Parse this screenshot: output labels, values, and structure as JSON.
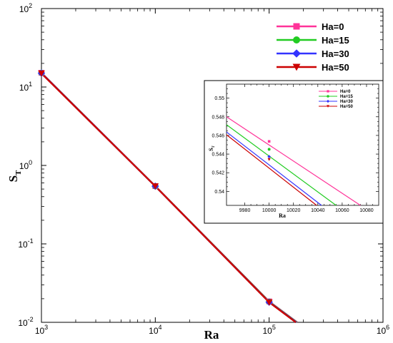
{
  "chart_data": [
    {
      "type": "line",
      "title": "",
      "xlabel": "Ra",
      "ylabel_main": "S",
      "ylabel_sub": "T",
      "xscale": "log",
      "yscale": "log",
      "xlim": [
        1000,
        1000000
      ],
      "ylim": [
        0.01,
        100
      ],
      "x_ticks": [
        {
          "mantissa": "10",
          "exp": "3"
        },
        {
          "mantissa": "10",
          "exp": "4"
        },
        {
          "mantissa": "10",
          "exp": "5"
        },
        {
          "mantissa": "10",
          "exp": "6"
        }
      ],
      "y_ticks": [
        {
          "mantissa": "10",
          "exp": "-2"
        },
        {
          "mantissa": "10",
          "exp": "-1"
        },
        {
          "mantissa": "10",
          "exp": "0"
        },
        {
          "mantissa": "10",
          "exp": "1"
        },
        {
          "mantissa": "10",
          "exp": "2"
        }
      ],
      "legend_position": "top-right",
      "series": [
        {
          "name": "Ha=0",
          "color": "#ff3399",
          "marker": "square",
          "x": [
            1000,
            10000,
            100000,
            180000
          ],
          "y": [
            15.2,
            0.545,
            0.0185,
            0.0098
          ]
        },
        {
          "name": "Ha=15",
          "color": "#22cc22",
          "marker": "circle",
          "x": [
            1000,
            10000,
            100000,
            180000
          ],
          "y": [
            15.1,
            0.5445,
            0.0183,
            0.0097
          ]
        },
        {
          "name": "Ha=30",
          "color": "#3333ff",
          "marker": "diamond",
          "x": [
            1000,
            10000,
            100000,
            180000
          ],
          "y": [
            15.0,
            0.5437,
            0.0181,
            0.0096
          ]
        },
        {
          "name": "Ha=50",
          "color": "#cc0000",
          "marker": "triangle-down",
          "x": [
            1000,
            10000,
            100000,
            180000
          ],
          "y": [
            14.9,
            0.5433,
            0.018,
            0.0095
          ]
        }
      ]
    },
    {
      "type": "line",
      "title": "",
      "xlabel": "Ra",
      "ylabel_main": "S",
      "ylabel_sub": "T",
      "xlim": [
        9965,
        10090
      ],
      "ylim": [
        0.5385,
        0.5515
      ],
      "x_ticks": [
        "9980",
        "10000",
        "10020",
        "10040",
        "10060",
        "10080"
      ],
      "y_ticks": [
        "0.54",
        "0.542",
        "0.544",
        "0.546",
        "0.548",
        "0.55"
      ],
      "legend_position": "top-right",
      "series": [
        {
          "name": "Ha=0",
          "color": "#ff3399",
          "marker": "square",
          "x": [
            9965,
            10000,
            10075
          ],
          "y": [
            0.548,
            0.54536,
            0.5385
          ],
          "marker_x": [
            10000
          ],
          "marker_y": [
            0.54536
          ]
        },
        {
          "name": "Ha=15",
          "color": "#22cc22",
          "marker": "circle",
          "x": [
            9965,
            10000,
            10055
          ],
          "y": [
            0.54715,
            0.54451,
            0.5385
          ],
          "marker_x": [
            10000
          ],
          "marker_y": [
            0.54451
          ]
        },
        {
          "name": "Ha=30",
          "color": "#3333ff",
          "marker": "diamond",
          "x": [
            9965,
            10000,
            10043
          ],
          "y": [
            0.54637,
            0.54373,
            0.5385
          ],
          "marker_x": [
            10000
          ],
          "marker_y": [
            0.54373
          ]
        },
        {
          "name": "Ha=50",
          "color": "#cc0000",
          "marker": "triangle-down",
          "x": [
            9965,
            10000,
            10039
          ],
          "y": [
            0.54607,
            0.54343,
            0.5385
          ],
          "marker_x": [
            10000
          ],
          "marker_y": [
            0.54343
          ]
        }
      ]
    }
  ]
}
